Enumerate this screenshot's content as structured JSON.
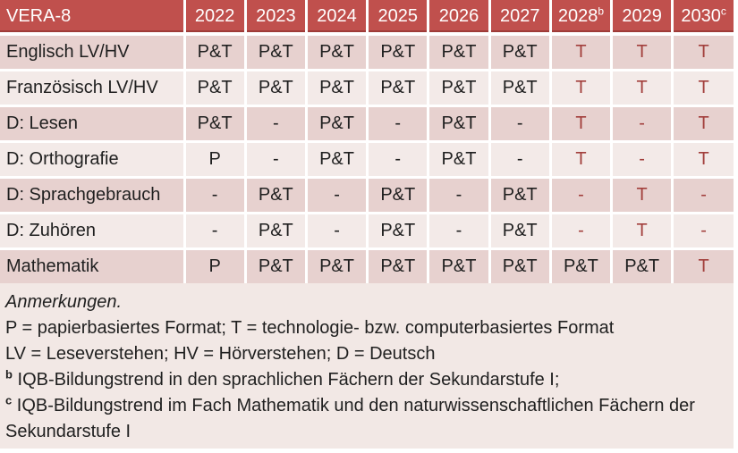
{
  "table": {
    "header": {
      "label": "VERA-8",
      "years": [
        {
          "text": "2022",
          "sup": ""
        },
        {
          "text": "2023",
          "sup": ""
        },
        {
          "text": "2024",
          "sup": ""
        },
        {
          "text": "2025",
          "sup": ""
        },
        {
          "text": "2026",
          "sup": ""
        },
        {
          "text": "2027",
          "sup": ""
        },
        {
          "text": "2028",
          "sup": "b"
        },
        {
          "text": "2029",
          "sup": ""
        },
        {
          "text": "2030",
          "sup": "c"
        }
      ]
    },
    "rows": [
      {
        "label": "Englisch LV/HV",
        "cells": [
          {
            "text": "P&T",
            "accent": false
          },
          {
            "text": "P&T",
            "accent": false
          },
          {
            "text": "P&T",
            "accent": false
          },
          {
            "text": "P&T",
            "accent": false
          },
          {
            "text": "P&T",
            "accent": false
          },
          {
            "text": "P&T",
            "accent": false
          },
          {
            "text": "T",
            "accent": true
          },
          {
            "text": "T",
            "accent": true
          },
          {
            "text": "T",
            "accent": true
          }
        ]
      },
      {
        "label": "Französisch LV/HV",
        "cells": [
          {
            "text": "P&T",
            "accent": false
          },
          {
            "text": "P&T",
            "accent": false
          },
          {
            "text": "P&T",
            "accent": false
          },
          {
            "text": "P&T",
            "accent": false
          },
          {
            "text": "P&T",
            "accent": false
          },
          {
            "text": "P&T",
            "accent": false
          },
          {
            "text": "T",
            "accent": true
          },
          {
            "text": "T",
            "accent": true
          },
          {
            "text": "T",
            "accent": true
          }
        ]
      },
      {
        "label": "D: Lesen",
        "cells": [
          {
            "text": "P&T",
            "accent": false
          },
          {
            "text": "-",
            "accent": false
          },
          {
            "text": "P&T",
            "accent": false
          },
          {
            "text": "-",
            "accent": false
          },
          {
            "text": "P&T",
            "accent": false
          },
          {
            "text": "-",
            "accent": false
          },
          {
            "text": "T",
            "accent": true
          },
          {
            "text": "-",
            "accent": true
          },
          {
            "text": "T",
            "accent": true
          }
        ]
      },
      {
        "label": "D: Orthografie",
        "cells": [
          {
            "text": "P",
            "accent": false
          },
          {
            "text": "-",
            "accent": false
          },
          {
            "text": "P&T",
            "accent": false
          },
          {
            "text": "-",
            "accent": false
          },
          {
            "text": "P&T",
            "accent": false
          },
          {
            "text": "-",
            "accent": false
          },
          {
            "text": "T",
            "accent": true
          },
          {
            "text": "-",
            "accent": true
          },
          {
            "text": "T",
            "accent": true
          }
        ]
      },
      {
        "label": "D: Sprachgebrauch",
        "cells": [
          {
            "text": "-",
            "accent": false
          },
          {
            "text": "P&T",
            "accent": false
          },
          {
            "text": "-",
            "accent": false
          },
          {
            "text": "P&T",
            "accent": false
          },
          {
            "text": "-",
            "accent": false
          },
          {
            "text": "P&T",
            "accent": false
          },
          {
            "text": "-",
            "accent": true
          },
          {
            "text": "T",
            "accent": true
          },
          {
            "text": "-",
            "accent": true
          }
        ]
      },
      {
        "label": "D: Zuhören",
        "cells": [
          {
            "text": "-",
            "accent": false
          },
          {
            "text": "P&T",
            "accent": false
          },
          {
            "text": "-",
            "accent": false
          },
          {
            "text": "P&T",
            "accent": false
          },
          {
            "text": "-",
            "accent": false
          },
          {
            "text": "P&T",
            "accent": false
          },
          {
            "text": "-",
            "accent": true
          },
          {
            "text": "T",
            "accent": true
          },
          {
            "text": "-",
            "accent": true
          }
        ]
      },
      {
        "label": "Mathematik",
        "cells": [
          {
            "text": "P",
            "accent": false
          },
          {
            "text": "P&T",
            "accent": false
          },
          {
            "text": "P&T",
            "accent": false
          },
          {
            "text": "P&T",
            "accent": false
          },
          {
            "text": "P&T",
            "accent": false
          },
          {
            "text": "P&T",
            "accent": false
          },
          {
            "text": "P&T",
            "accent": false
          },
          {
            "text": "P&T",
            "accent": false
          },
          {
            "text": "T",
            "accent": true
          }
        ]
      }
    ]
  },
  "notes": {
    "title": "Anmerkungen.",
    "format_legend": "P = papierbasiertes Format; T = technologie- bzw. computerbasiertes Format",
    "abbrev_legend": "LV = Leseverstehen; HV = Hörverstehen; D = Deutsch",
    "footnote_b_marker": "b",
    "footnote_b": "IQB-Bildungstrend in den sprachlichen Fächern der Sekundarstufe I;",
    "footnote_c_marker": "c",
    "footnote_c": "IQB-Bildungstrend im Fach Mathematik und den naturwissenschaftlichen Fächern der Sekundarstufe I"
  },
  "colors": {
    "header_bg": "#C0504D",
    "header_underline": "#9E3B38",
    "row_dark": "#E7D1CF",
    "row_light": "#F3EAE8",
    "notes_bg": "#F2E8E5",
    "accent_text": "#A23F3C",
    "header_text": "#FFFFFF",
    "body_text": "#1F1F1F"
  }
}
